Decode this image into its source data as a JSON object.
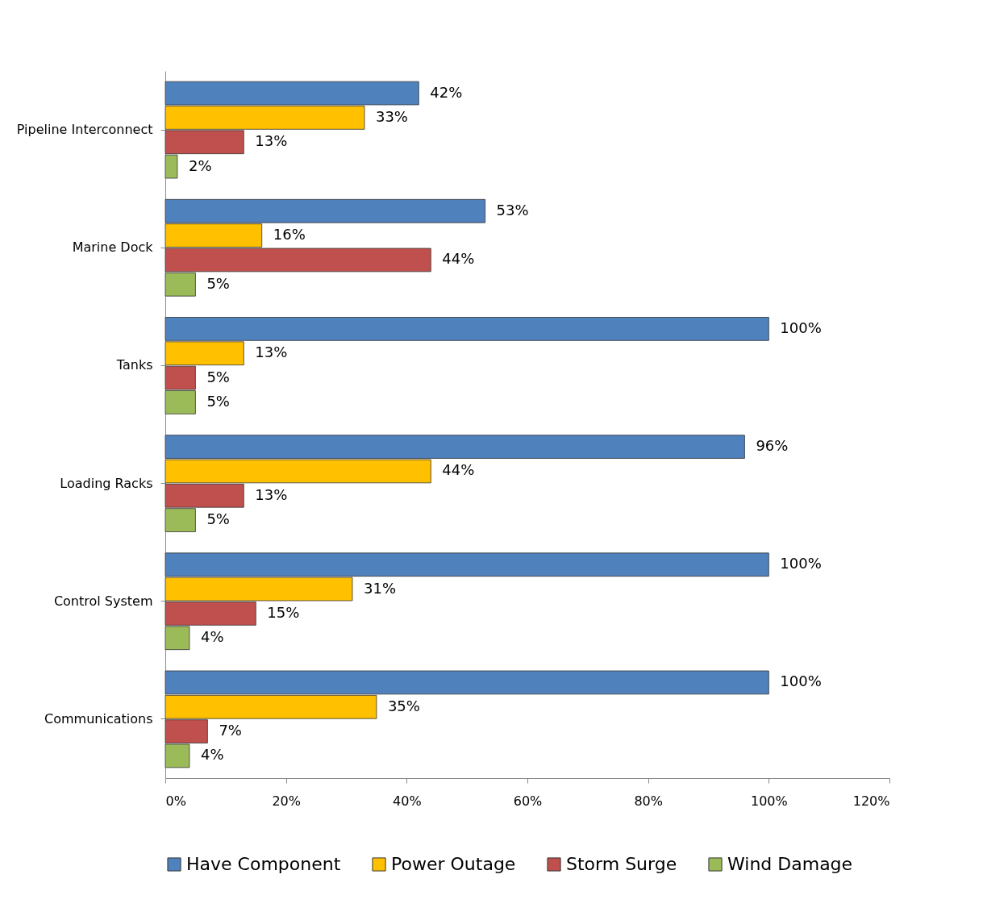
{
  "chart_data": {
    "type": "bar",
    "orientation": "horizontal",
    "categories": [
      "Pipeline Interconnect",
      "Marine Dock",
      "Tanks",
      "Loading Racks",
      "Control System",
      "Communications"
    ],
    "series": [
      {
        "name": "Have Component",
        "color": "#4f81bd",
        "values": [
          42,
          53,
          100,
          96,
          100,
          100
        ],
        "value_labels": [
          "42%",
          "53%",
          "100%",
          "96%",
          "100%",
          "100%"
        ]
      },
      {
        "name": "Power Outage",
        "color": "#ffc000",
        "values": [
          33,
          16,
          13,
          44,
          31,
          35
        ],
        "value_labels": [
          "33%",
          "16%",
          "13%",
          "44%",
          "31%",
          "35%"
        ]
      },
      {
        "name": "Storm Surge",
        "color": "#c0504d",
        "values": [
          13,
          44,
          5,
          13,
          15,
          7
        ],
        "value_labels": [
          "13%",
          "44%",
          "5%",
          "13%",
          "15%",
          "7%"
        ]
      },
      {
        "name": "Wind Damage",
        "color": "#9bbb59",
        "values": [
          2,
          5,
          5,
          5,
          4,
          4
        ],
        "value_labels": [
          "2%",
          "5%",
          "5%",
          "5%",
          "4%",
          "4%"
        ]
      }
    ],
    "xlim": [
      0,
      120
    ],
    "xticks": [
      {
        "value": 0,
        "label": "0%"
      },
      {
        "value": 20,
        "label": "20%"
      },
      {
        "value": 40,
        "label": "40%"
      },
      {
        "value": 60,
        "label": "60%"
      },
      {
        "value": 80,
        "label": "80%"
      },
      {
        "value": 100,
        "label": "100%"
      },
      {
        "value": 120,
        "label": "120%"
      }
    ],
    "grid": false,
    "legend": "bottom"
  }
}
